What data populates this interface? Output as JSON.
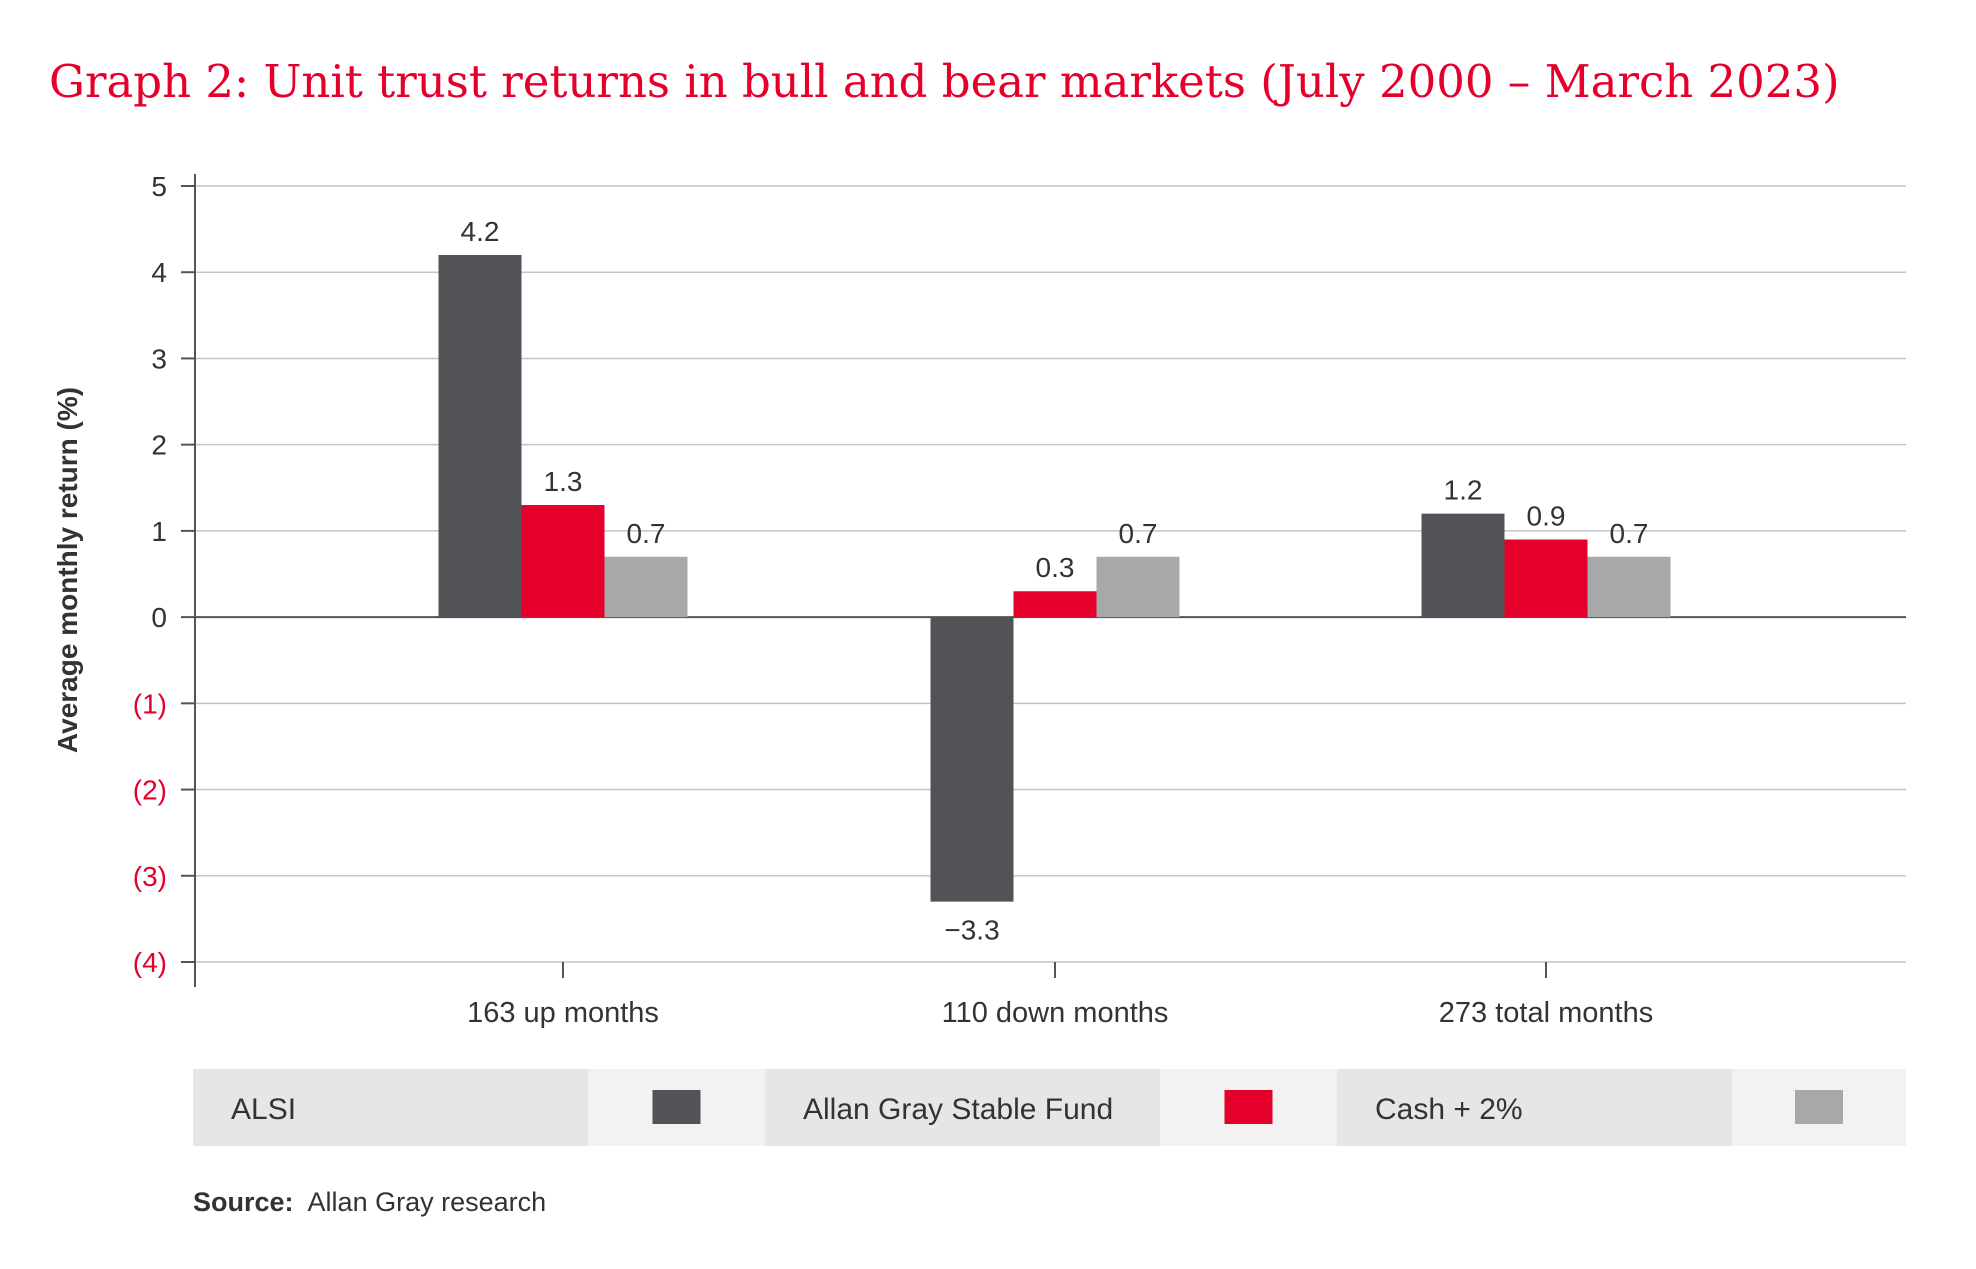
{
  "page_title": "Graph 2: Unit trust returns in bull and bear markets (July 2000 – March 2023)",
  "source": {
    "label": "Source:",
    "text": "Allan Gray research"
  },
  "colors": {
    "title": "#e4002b",
    "negative_tick": "#e4002b",
    "text": "#333333",
    "grid": "#c4c4c4",
    "axis": "#555555",
    "legend_bg_label": "#e6e6e6",
    "legend_bg_swatch": "#f2f2f2"
  },
  "chart_data": {
    "type": "bar",
    "title": "Graph 2: Unit trust returns in bull and bear markets (July 2000 – March 2023)",
    "xlabel": "",
    "ylabel": "Average monthly return (%)",
    "ylim": [
      -4,
      5
    ],
    "yticks": [
      5,
      4,
      3,
      2,
      1,
      0,
      -1,
      -2,
      -3,
      -4
    ],
    "ytick_labels": [
      "5",
      "4",
      "3",
      "2",
      "1",
      "0",
      "(1)",
      "(2)",
      "(3)",
      "(4)"
    ],
    "grid": true,
    "legend_position": "bottom",
    "categories": [
      "163 up months",
      "110 down months",
      "273 total months"
    ],
    "series": [
      {
        "name": "ALSI",
        "color": "#525357",
        "values": [
          4.2,
          -3.3,
          1.2
        ],
        "labels": [
          "4.2",
          "−3.3",
          "1.2"
        ]
      },
      {
        "name": "Allan Gray Stable Fund",
        "color": "#e4002b",
        "values": [
          1.3,
          0.3,
          0.9
        ],
        "labels": [
          "1.3",
          "0.3",
          "0.9"
        ]
      },
      {
        "name": "Cash + 2%",
        "color": "#a7a8aa",
        "values": [
          0.7,
          0.7,
          0.7
        ],
        "labels": [
          "0.7",
          "0.7",
          "0.7"
        ]
      }
    ]
  }
}
